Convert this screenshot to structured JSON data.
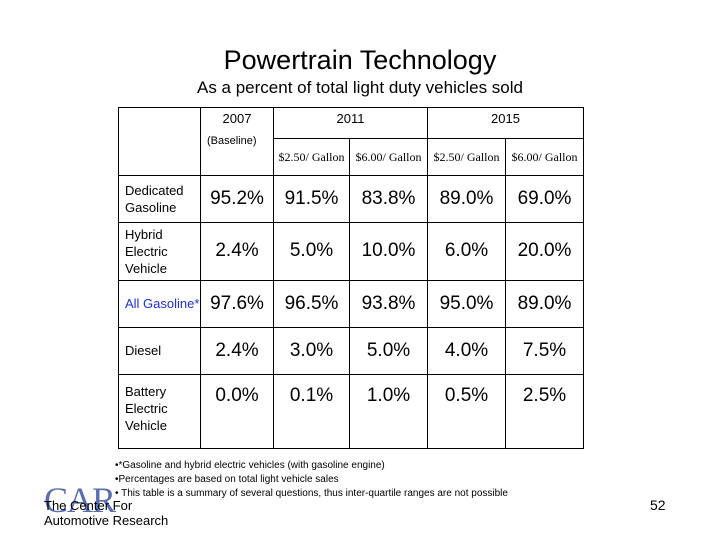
{
  "slide": {
    "title": "Powertrain Technology",
    "subtitle": "As a percent of total light duty vehicles sold"
  },
  "table": {
    "year_headers": [
      "2007",
      "2011",
      "2015"
    ],
    "baseline_note": "(Baseline)",
    "price_headers": [
      "$2.50/ Gallon",
      "$6.00/ Gallon",
      "$2.50/ Gallon",
      "$6.00/ Gallon"
    ],
    "rows": [
      {
        "label": "Dedicated Gasoline",
        "values": [
          "95.2%",
          "91.5%",
          "83.8%",
          "89.0%",
          "69.0%"
        ]
      },
      {
        "label": "Hybrid Electric Vehicle",
        "values": [
          "2.4%",
          "5.0%",
          "10.0%",
          "6.0%",
          "20.0%"
        ]
      },
      {
        "label": "All Gasoline*",
        "values": [
          "97.6%",
          "96.5%",
          "93.8%",
          "95.0%",
          "89.0%"
        ]
      },
      {
        "label": "Diesel",
        "values": [
          "2.4%",
          "3.0%",
          "5.0%",
          "4.0%",
          "7.5%"
        ]
      },
      {
        "label": "Battery Electric Vehicle",
        "values": [
          "0.0%",
          "0.1%",
          "1.0%",
          "0.5%",
          "2.5%"
        ]
      }
    ]
  },
  "notes": [
    "•*Gasoline and hybrid electric vehicles (with gasoline engine)",
    "•Percentages are based on total light vehicle sales",
    "• This table is a summary of several questions, thus inter-quartile ranges are not possible"
  ],
  "footer": {
    "logo_text": "CAR",
    "org_line1": "The Center For",
    "org_line2": "Automotive Research",
    "page_number": "52"
  },
  "colors": {
    "label_highlight": "#1f2fd6",
    "logo": "#5a6db0"
  }
}
